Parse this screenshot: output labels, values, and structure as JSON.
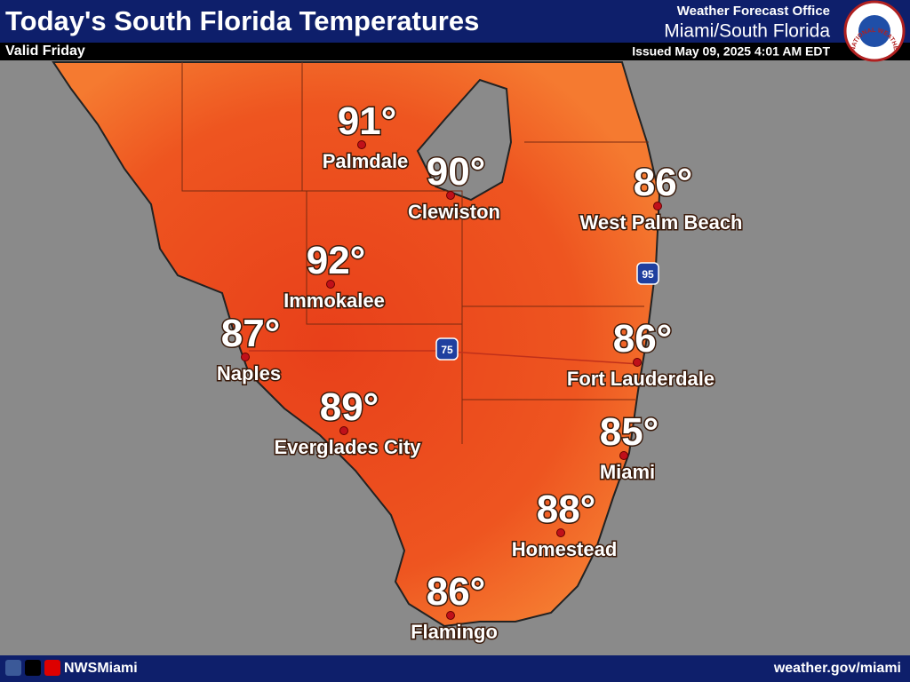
{
  "header": {
    "title": "Today's South Florida Temperatures",
    "valid": "Valid Friday",
    "office_line1": "Weather Forecast Office",
    "office_line2": "Miami/South Florida",
    "issued": "Issued May 09, 2025 4:01 AM EDT",
    "logo_text": "NATIONAL WEATHER SERVICE"
  },
  "map": {
    "cities": [
      {
        "temp": "91°",
        "name": "Palmdale"
      },
      {
        "temp": "90°",
        "name": "Clewiston"
      },
      {
        "temp": "86°",
        "name": "West Palm Beach"
      },
      {
        "temp": "92°",
        "name": "Immokalee"
      },
      {
        "temp": "87°",
        "name": "Naples"
      },
      {
        "temp": "89°",
        "name": "Everglades City"
      },
      {
        "temp": "86°",
        "name": "Fort Lauderdale"
      },
      {
        "temp": "85°",
        "name": "Miami"
      },
      {
        "temp": "88°",
        "name": "Homestead"
      },
      {
        "temp": "86°",
        "name": "Flamingo"
      }
    ],
    "shields": [
      "95",
      "75"
    ]
  },
  "footer": {
    "handle": "NWSMiami",
    "website": "weather.gov/miami"
  }
}
